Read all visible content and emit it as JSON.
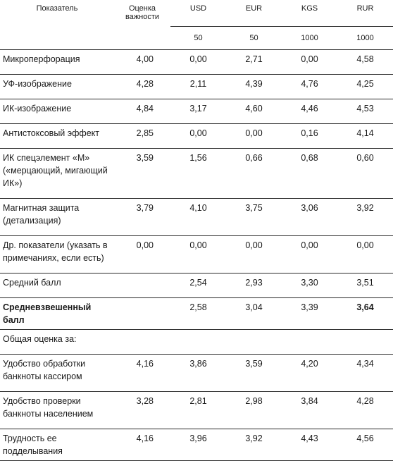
{
  "header": {
    "indicator": "Показатель",
    "importance": "Оценка важности",
    "currencies": [
      "USD",
      "EUR",
      "KGS",
      "RUR"
    ],
    "denominations": [
      "50",
      "50",
      "1000",
      "1000"
    ]
  },
  "rows": [
    {
      "label": "Микроперфорация",
      "importance": "4,00",
      "usd": "0,00",
      "eur": "2,71",
      "kgs": "0,00",
      "rur": "4,58"
    },
    {
      "label": "УФ-изображение",
      "importance": "4,28",
      "usd": "2,11",
      "eur": "4,39",
      "kgs": "4,76",
      "rur": "4,25"
    },
    {
      "label": "ИК-изображение",
      "importance": "4,84",
      "usd": "3,17",
      "eur": "4,60",
      "kgs": "4,46",
      "rur": "4,53"
    },
    {
      "label": "Антистоксовый эффект",
      "importance": "2,85",
      "usd": "0,00",
      "eur": "0,00",
      "kgs": "0,16",
      "rur": "4,14"
    },
    {
      "label": "ИК спецэлемент «М» («мерцающий, мигающий ИК»)",
      "importance": "3,59",
      "usd": "1,56",
      "eur": "0,66",
      "kgs": "0,68",
      "rur": "0,60"
    },
    {
      "label": "Магнитная защита (детализация)",
      "importance": "3,79",
      "usd": "4,10",
      "eur": "3,75",
      "kgs": "3,06",
      "rur": "3,92"
    },
    {
      "label": "Др. показатели (указать в примечаниях, если есть)",
      "importance": "0,00",
      "usd": "0,00",
      "eur": "0,00",
      "kgs": "0,00",
      "rur": "0,00"
    },
    {
      "label": "Средний балл",
      "importance": "",
      "usd": "2,54",
      "eur": "2,93",
      "kgs": "3,30",
      "rur": "3,51"
    },
    {
      "label": "Средневзвешенный балл",
      "importance": "",
      "usd": "2,58",
      "eur": "3,04",
      "kgs": "3,39",
      "rur": "3,64"
    }
  ],
  "section_title": "Общая оценка за:",
  "overall": [
    {
      "label": "Удобство обработки банкноты кассиром",
      "importance": "4,16",
      "usd": "3,86",
      "eur": "3,59",
      "kgs": "4,20",
      "rur": "4,34"
    },
    {
      "label": "Удобство проверки банкноты населением",
      "importance": "3,28",
      "usd": "2,81",
      "eur": "2,98",
      "kgs": "3,84",
      "rur": "4,28"
    },
    {
      "label": "Трудность ее подделывания",
      "importance": "4,16",
      "usd": "3,96",
      "eur": "3,92",
      "kgs": "4,43",
      "rur": "4,56"
    }
  ]
}
